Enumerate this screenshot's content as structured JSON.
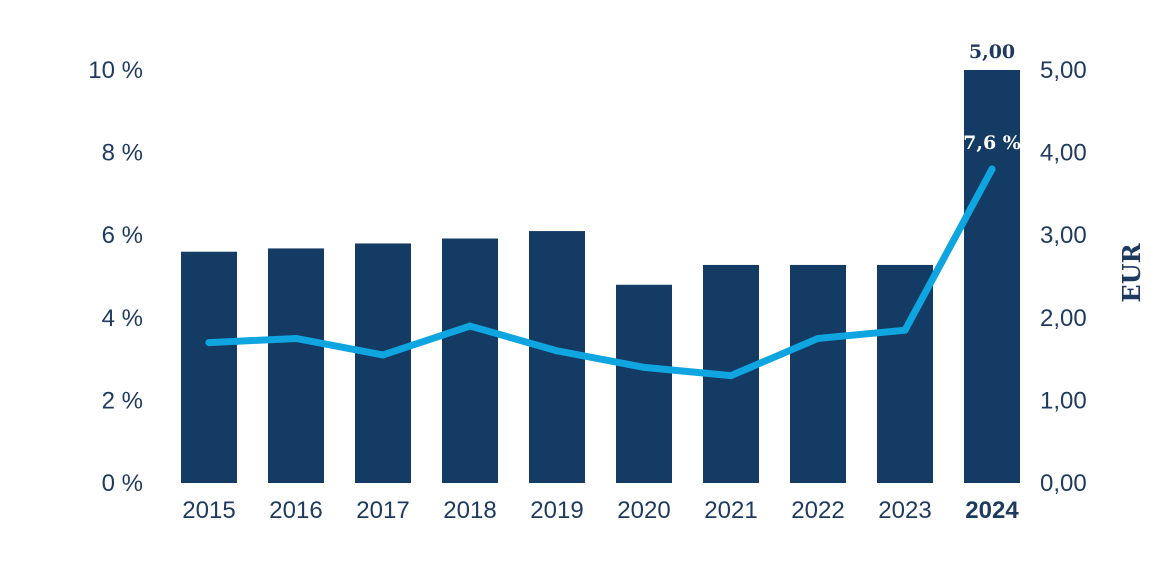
{
  "chart_data": {
    "type": "bar",
    "categories": [
      "2015",
      "2016",
      "2017",
      "2018",
      "2019",
      "2020",
      "2021",
      "2022",
      "2023",
      "2024"
    ],
    "highlight_category": "2024",
    "y_left": {
      "ticks": [
        "0 %",
        "2 %",
        "4 %",
        "6 %",
        "8 %",
        "10 %"
      ],
      "ylim": [
        0,
        10
      ]
    },
    "y_right": {
      "ticks": [
        "0,00",
        "1,00",
        "2,00",
        "3,00",
        "4,00",
        "5,00"
      ],
      "ylim": [
        0,
        5
      ],
      "label": "EUR"
    },
    "series": [
      {
        "type": "bar",
        "axis": "right",
        "color": "#133b63",
        "values": [
          2.8,
          2.84,
          2.9,
          2.96,
          3.05,
          2.4,
          2.64,
          2.64,
          2.64,
          5.0
        ],
        "data_labels": [
          null,
          null,
          null,
          null,
          null,
          null,
          null,
          null,
          null,
          "5,00"
        ]
      },
      {
        "type": "line",
        "axis": "left",
        "color": "#0ea5e0",
        "values": [
          3.4,
          3.5,
          3.1,
          3.8,
          3.2,
          2.8,
          2.6,
          3.5,
          3.7,
          7.6
        ],
        "data_labels": [
          null,
          null,
          null,
          null,
          null,
          null,
          null,
          null,
          null,
          "7,6 %"
        ]
      }
    ],
    "grid": false,
    "legend": "none"
  }
}
